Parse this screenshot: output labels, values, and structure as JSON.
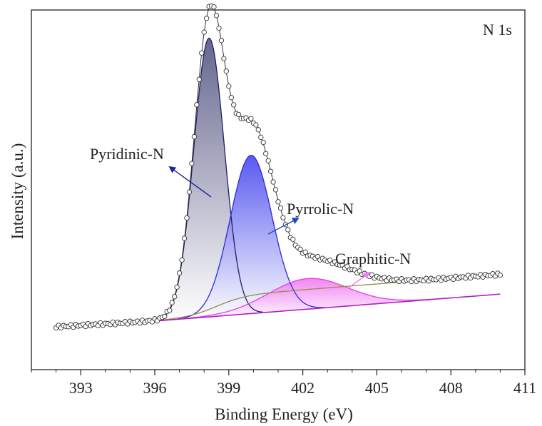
{
  "chart_data": {
    "type": "line",
    "title": "N 1s",
    "xlabel": "Binding Energy (eV)",
    "ylabel": "Intensity (a.u.)",
    "xlim": [
      391,
      411
    ],
    "ylim": [
      0,
      1.0
    ],
    "x_ticks": [
      393,
      396,
      399,
      402,
      405,
      408,
      411
    ],
    "x_tick_labels": [
      "393",
      "396",
      "399",
      "402",
      "405",
      "408",
      "411"
    ],
    "y_ticks_shown": false,
    "grid": false,
    "legend": "none",
    "baseline": {
      "start": [
        396.0,
        0.135
      ],
      "end": [
        410.0,
        0.21
      ]
    },
    "raw_data_range": [
      392.0,
      410.0
    ],
    "peaks": [
      {
        "name": "Pyridinic-N",
        "center": 398.2,
        "height": 0.775,
        "sigma": 0.62,
        "color": "#1e1e64",
        "fill_top": "#4b4b7c",
        "arrow_color": "#1c2a8a"
      },
      {
        "name": "Pyrrolic-N",
        "center": 399.9,
        "height": 0.44,
        "sigma": 0.85,
        "color": "#2b2bd8",
        "fill_top": "#3c3cee",
        "arrow_color": "#1a4bb8"
      },
      {
        "name": "Graphitic-N",
        "center": 402.2,
        "height": 0.085,
        "sigma": 1.6,
        "color": "#e040e0",
        "fill_top": "#f070f0",
        "arrow_color": "#ee82ee"
      }
    ],
    "extra_component": {
      "type": "step",
      "center": 398.5,
      "height": 0.055,
      "color": "#9a8a40"
    }
  }
}
